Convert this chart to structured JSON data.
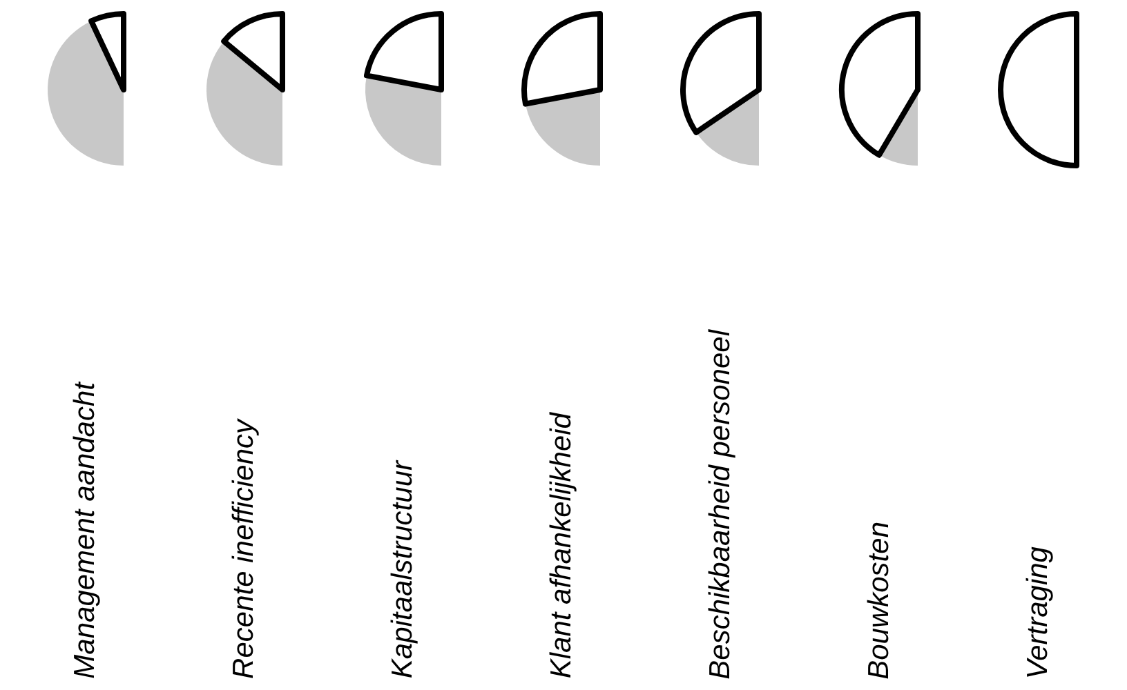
{
  "chart_data": [
    {
      "type": "pie",
      "title": "Management aandacht",
      "categories": [
        null,
        null
      ],
      "values": [
        86,
        14
      ],
      "colors": [
        "#c8c8c8",
        "#ffffff"
      ]
    },
    {
      "type": "pie",
      "title": "Recente inefficiency",
      "categories": [
        null,
        null
      ],
      "values": [
        72,
        28
      ],
      "colors": [
        "#c8c8c8",
        "#ffffff"
      ]
    },
    {
      "type": "pie",
      "title": "Kapitaalstructuur",
      "categories": [
        null,
        null
      ],
      "values": [
        56,
        44
      ],
      "colors": [
        "#c8c8c8",
        "#ffffff"
      ]
    },
    {
      "type": "pie",
      "title": "Klant afhankelijkheid",
      "categories": [
        null,
        null
      ],
      "values": [
        44,
        56
      ],
      "colors": [
        "#c8c8c8",
        "#ffffff"
      ]
    },
    {
      "type": "pie",
      "title": "Beschikbaarheid personeel",
      "categories": [
        null,
        null
      ],
      "values": [
        31,
        69
      ],
      "colors": [
        "#c8c8c8",
        "#ffffff"
      ]
    },
    {
      "type": "pie",
      "title": "Bouwkosten",
      "categories": [
        null,
        null
      ],
      "values": [
        17,
        83
      ],
      "colors": [
        "#c8c8c8",
        "#ffffff"
      ]
    },
    {
      "type": "pie",
      "title": "Vertraging",
      "categories": [
        null,
        null
      ],
      "values": [
        0,
        100
      ],
      "colors": [
        "#c8c8c8",
        "#ffffff"
      ]
    }
  ]
}
